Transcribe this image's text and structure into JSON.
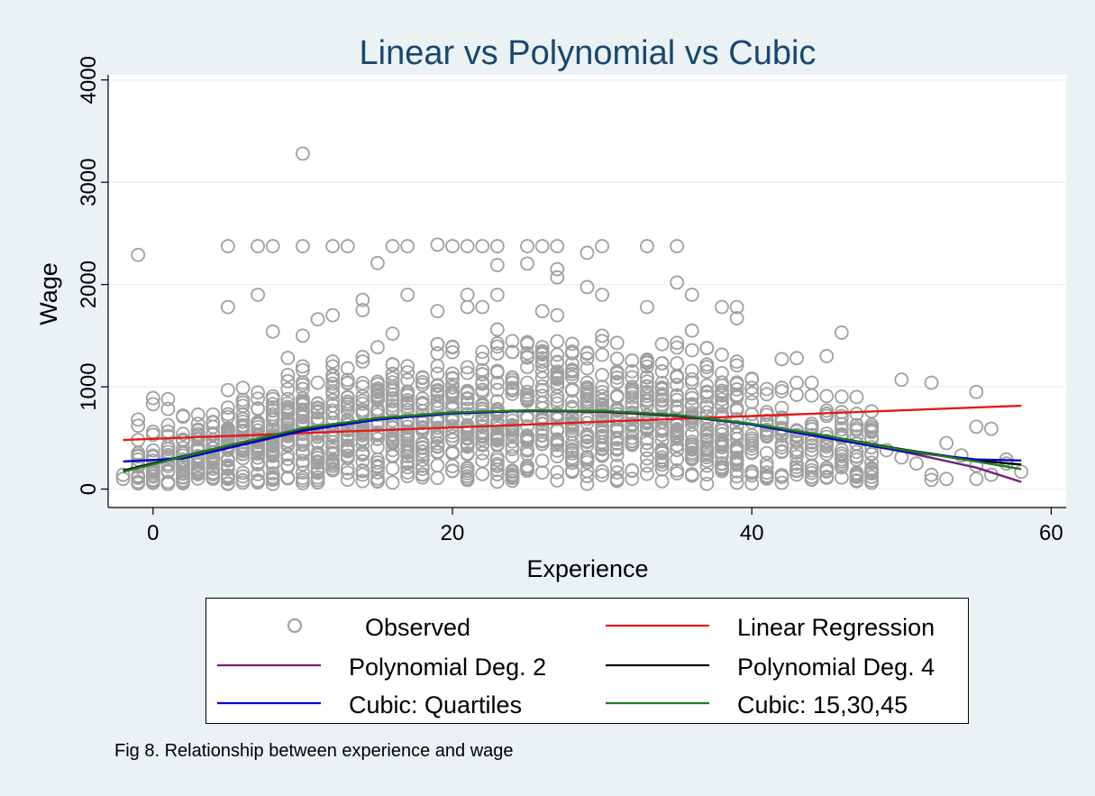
{
  "chart_data": {
    "type": "scatter",
    "title": "Linear vs Polynomial vs Cubic",
    "xlabel": "Experience",
    "ylabel": "Wage",
    "xlim": [
      -3,
      61
    ],
    "ylim": [
      -180,
      4050
    ],
    "x_ticks": [
      0,
      20,
      40,
      60
    ],
    "y_ticks": [
      0,
      1000,
      2000,
      3000,
      4000
    ],
    "grid": true,
    "legend_position": "bottom",
    "colors": {
      "background": "#EAF2F3",
      "plot_background": "#FFFFFF",
      "gridline": "#EAF2F3",
      "title": "#1A476F",
      "points": "#A0A0A0"
    },
    "series": [
      {
        "name": "Observed",
        "kind": "points",
        "color": "#A0A0A0",
        "points": [
          [
            -1,
            2290
          ],
          [
            10,
            3280
          ],
          [
            5,
            2375
          ],
          [
            7,
            2375
          ],
          [
            8,
            2375
          ],
          [
            10,
            2375
          ],
          [
            12,
            2375
          ],
          [
            13,
            2375
          ],
          [
            16,
            2375
          ],
          [
            17,
            2375
          ],
          [
            19,
            2390
          ],
          [
            20,
            2375
          ],
          [
            21,
            2375
          ],
          [
            22,
            2375
          ],
          [
            23,
            2375
          ],
          [
            25,
            2375
          ],
          [
            26,
            2375
          ],
          [
            27,
            2375
          ],
          [
            30,
            2375
          ],
          [
            33,
            2375
          ],
          [
            35,
            2375
          ],
          [
            15,
            2210
          ],
          [
            23,
            2190
          ],
          [
            25,
            2205
          ],
          [
            27,
            2150
          ],
          [
            29,
            2310
          ],
          [
            27,
            2070
          ],
          [
            35,
            2020
          ],
          [
            29,
            1975
          ],
          [
            30,
            1900
          ],
          [
            36,
            1900
          ],
          [
            7,
            1900
          ],
          [
            21,
            1900
          ],
          [
            23,
            1900
          ],
          [
            17,
            1900
          ],
          [
            14,
            1850
          ],
          [
            5,
            1780
          ],
          [
            11,
            1660
          ],
          [
            12,
            1700
          ],
          [
            14,
            1750
          ],
          [
            19,
            1740
          ],
          [
            21,
            1780
          ],
          [
            22,
            1780
          ],
          [
            26,
            1740
          ],
          [
            27,
            1700
          ],
          [
            33,
            1780
          ],
          [
            38,
            1780
          ],
          [
            39,
            1780
          ],
          [
            39,
            1670
          ],
          [
            46,
            1530
          ],
          [
            10,
            1500
          ],
          [
            23,
            1560
          ],
          [
            25,
            1420
          ],
          [
            28,
            1420
          ],
          [
            30,
            1500
          ],
          [
            31,
            1430
          ],
          [
            36,
            1550
          ],
          [
            8,
            1540
          ],
          [
            16,
            1520
          ],
          [
            35,
            1430
          ],
          [
            37,
            1380
          ],
          [
            42,
            1270
          ],
          [
            43,
            1280
          ],
          [
            45,
            1300
          ],
          [
            50,
            1070
          ],
          [
            52,
            1040
          ],
          [
            55,
            950
          ],
          [
            53,
            450
          ],
          [
            55,
            610
          ],
          [
            56,
            590
          ],
          [
            57,
            290
          ],
          [
            58,
            170
          ],
          [
            52,
            140
          ],
          [
            52,
            90
          ],
          [
            53,
            100
          ],
          [
            54,
            330
          ],
          [
            55,
            230
          ],
          [
            55,
            100
          ],
          [
            56,
            140
          ],
          [
            57,
            250
          ],
          [
            51,
            250
          ],
          [
            50,
            310
          ],
          [
            49,
            380
          ],
          [
            47,
            900
          ],
          [
            48,
            760
          ],
          [
            -2,
            100
          ],
          [
            -2,
            140
          ],
          [
            -1,
            680
          ],
          [
            -1,
            620
          ],
          [
            0,
            890
          ],
          [
            0,
            830
          ],
          [
            0,
            560
          ],
          [
            1,
            880
          ],
          [
            -1,
            320
          ]
        ]
      },
      {
        "name": "Linear Regression",
        "kind": "line",
        "color": "#E41A1C",
        "points": [
          [
            -2,
            480
          ],
          [
            58,
            815
          ]
        ]
      },
      {
        "name": "Polynomial Deg. 2",
        "kind": "line",
        "color": "#7B1F7B",
        "points": [
          [
            -2,
            180
          ],
          [
            5,
            420
          ],
          [
            10,
            590
          ],
          [
            15,
            690
          ],
          [
            20,
            745
          ],
          [
            25,
            765
          ],
          [
            30,
            755
          ],
          [
            35,
            715
          ],
          [
            40,
            635
          ],
          [
            45,
            515
          ],
          [
            50,
            370
          ],
          [
            55,
            210
          ],
          [
            58,
            70
          ]
        ]
      },
      {
        "name": "Polynomial Deg. 4",
        "kind": "line",
        "color": "#000000",
        "points": [
          [
            -2,
            180
          ],
          [
            5,
            425
          ],
          [
            10,
            590
          ],
          [
            15,
            690
          ],
          [
            20,
            745
          ],
          [
            25,
            765
          ],
          [
            30,
            760
          ],
          [
            35,
            720
          ],
          [
            40,
            635
          ],
          [
            45,
            520
          ],
          [
            50,
            390
          ],
          [
            55,
            280
          ],
          [
            58,
            240
          ]
        ]
      },
      {
        "name": "Cubic: Quartiles",
        "kind": "line",
        "color": "#0000CC",
        "points": [
          [
            -2,
            270
          ],
          [
            2,
            300
          ],
          [
            5,
            400
          ],
          [
            10,
            570
          ],
          [
            15,
            680
          ],
          [
            20,
            740
          ],
          [
            25,
            765
          ],
          [
            30,
            765
          ],
          [
            35,
            725
          ],
          [
            40,
            630
          ],
          [
            45,
            500
          ],
          [
            50,
            370
          ],
          [
            55,
            290
          ],
          [
            58,
            280
          ]
        ]
      },
      {
        "name": "Cubic: 15,30,45",
        "kind": "line",
        "color": "#1E7D1E",
        "points": [
          [
            -2,
            170
          ],
          [
            5,
            425
          ],
          [
            10,
            595
          ],
          [
            15,
            695
          ],
          [
            20,
            750
          ],
          [
            25,
            770
          ],
          [
            30,
            765
          ],
          [
            35,
            725
          ],
          [
            40,
            640
          ],
          [
            45,
            520
          ],
          [
            50,
            385
          ],
          [
            55,
            270
          ],
          [
            58,
            195
          ]
        ]
      }
    ]
  },
  "legend": {
    "items": [
      {
        "label": "Observed"
      },
      {
        "label": "Linear Regression"
      },
      {
        "label": "Polynomial Deg. 2"
      },
      {
        "label": "Polynomial Deg. 4"
      },
      {
        "label": "Cubic: Quartiles"
      },
      {
        "label": "Cubic: 15,30,45"
      }
    ]
  },
  "caption": "Fig 8. Relationship between experience and wage"
}
